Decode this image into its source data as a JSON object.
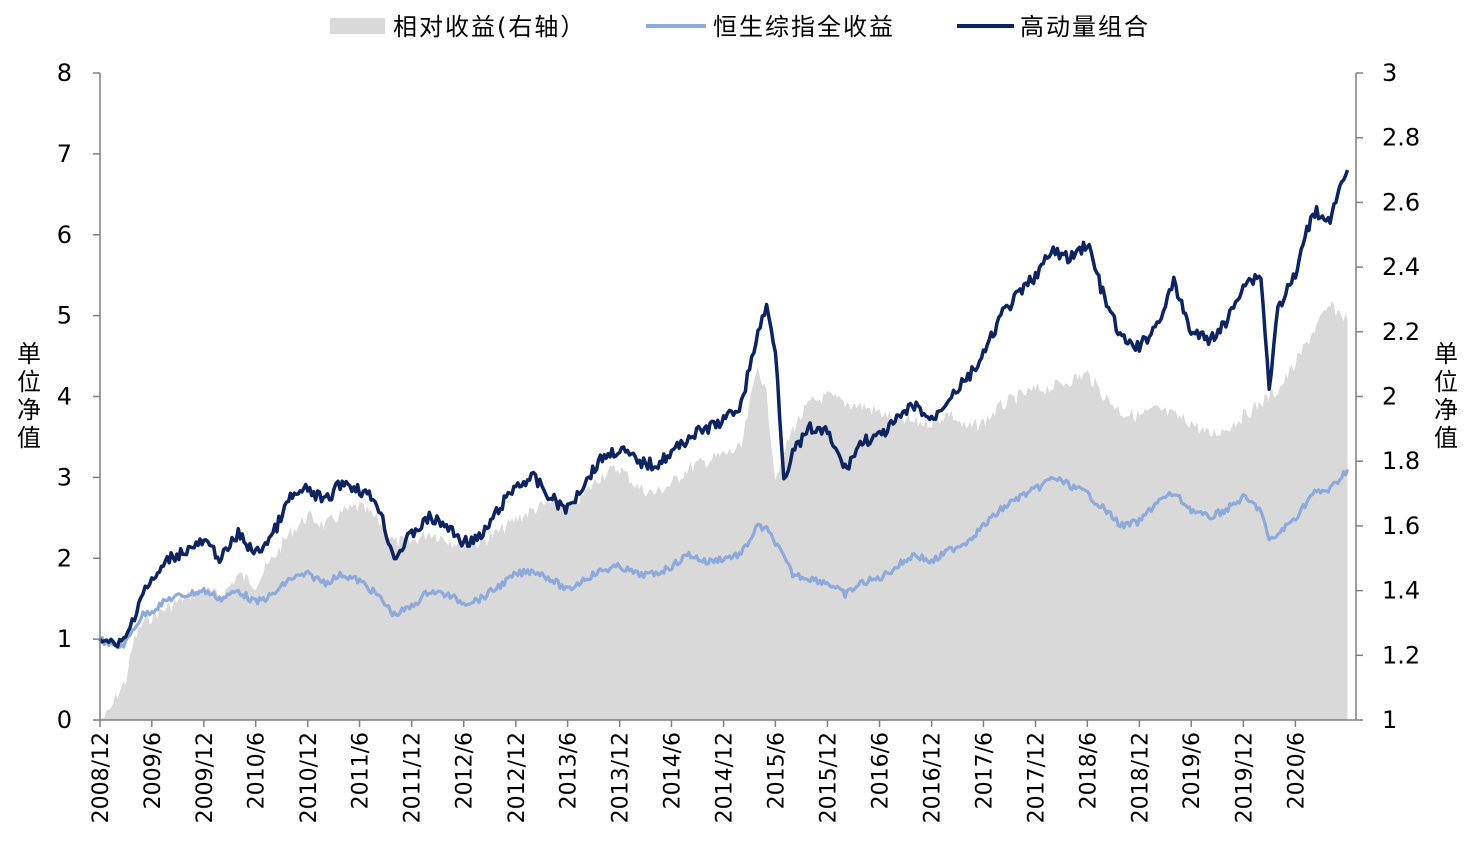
{
  "chart_data": {
    "type": "line",
    "title": "",
    "legend": {
      "placement": "top-center",
      "items": [
        "相对收益(右轴）",
        "恒生综指全收益",
        "高动量组合"
      ]
    },
    "y_left": {
      "label": "单位净值",
      "ylim": [
        0,
        8
      ],
      "ticks": [
        "0",
        "1",
        "2",
        "3",
        "4",
        "5",
        "6",
        "7",
        "8"
      ]
    },
    "y_right": {
      "label": "单位净值",
      "ylim": [
        1,
        3
      ],
      "ticks": [
        "1",
        "1.2",
        "1.4",
        "1.6",
        "1.8",
        "2",
        "2.2",
        "2.4",
        "2.6",
        "2.8",
        "3"
      ]
    },
    "x_ticks": [
      "2008/12",
      "2009/6",
      "2009/12",
      "2010/6",
      "2010/12",
      "2011/6",
      "2011/12",
      "2012/6",
      "2012/12",
      "2013/6",
      "2013/12",
      "2014/6",
      "2014/12",
      "2015/6",
      "2015/12",
      "2016/6",
      "2016/12",
      "2017/6",
      "2017/12",
      "2018/6",
      "2018/12",
      "2019/6",
      "2019/12",
      "2020/6"
    ],
    "x_range": [
      "2008-12-01",
      "2020-12-31"
    ],
    "colors": {
      "relative": "#d9d9d9",
      "index": "#8eaadb",
      "momentum": "#0d2461"
    },
    "series": [
      {
        "name": "相对收益(右轴）",
        "axis": "right",
        "kind": "area",
        "points": [
          [
            "2008-12-01",
            1.0
          ],
          [
            "2009-01-01",
            1.02
          ],
          [
            "2009-02-01",
            1.08
          ],
          [
            "2009-03-01",
            1.12
          ],
          [
            "2009-04-01",
            1.25
          ],
          [
            "2009-05-01",
            1.3
          ],
          [
            "2009-06-01",
            1.32
          ],
          [
            "2009-08-01",
            1.35
          ],
          [
            "2009-10-01",
            1.38
          ],
          [
            "2009-12-01",
            1.4
          ],
          [
            "2010-02-01",
            1.38
          ],
          [
            "2010-04-01",
            1.45
          ],
          [
            "2010-06-01",
            1.42
          ],
          [
            "2010-08-01",
            1.5
          ],
          [
            "2010-10-01",
            1.58
          ],
          [
            "2010-12-01",
            1.63
          ],
          [
            "2011-02-01",
            1.6
          ],
          [
            "2011-04-01",
            1.64
          ],
          [
            "2011-06-01",
            1.66
          ],
          [
            "2011-08-01",
            1.62
          ],
          [
            "2011-10-01",
            1.55
          ],
          [
            "2011-12-01",
            1.55
          ],
          [
            "2012-02-01",
            1.58
          ],
          [
            "2012-04-01",
            1.56
          ],
          [
            "2012-06-01",
            1.54
          ],
          [
            "2012-08-01",
            1.55
          ],
          [
            "2012-10-01",
            1.58
          ],
          [
            "2012-12-01",
            1.62
          ],
          [
            "2013-02-01",
            1.65
          ],
          [
            "2013-04-01",
            1.67
          ],
          [
            "2013-06-01",
            1.65
          ],
          [
            "2013-08-01",
            1.7
          ],
          [
            "2013-10-01",
            1.76
          ],
          [
            "2013-12-01",
            1.78
          ],
          [
            "2014-02-01",
            1.72
          ],
          [
            "2014-04-01",
            1.7
          ],
          [
            "2014-06-01",
            1.73
          ],
          [
            "2014-08-01",
            1.78
          ],
          [
            "2014-10-01",
            1.8
          ],
          [
            "2014-12-01",
            1.82
          ],
          [
            "2015-02-01",
            1.84
          ],
          [
            "2015-04-01",
            2.1
          ],
          [
            "2015-05-01",
            2.0
          ],
          [
            "2015-06-01",
            1.75
          ],
          [
            "2015-08-01",
            1.9
          ],
          [
            "2015-10-01",
            1.98
          ],
          [
            "2015-12-01",
            2.0
          ],
          [
            "2016-02-01",
            1.98
          ],
          [
            "2016-04-01",
            1.97
          ],
          [
            "2016-06-01",
            1.95
          ],
          [
            "2016-08-01",
            1.93
          ],
          [
            "2016-10-01",
            1.92
          ],
          [
            "2016-12-01",
            1.92
          ],
          [
            "2017-02-01",
            1.95
          ],
          [
            "2017-04-01",
            1.9
          ],
          [
            "2017-06-01",
            1.92
          ],
          [
            "2017-08-01",
            1.97
          ],
          [
            "2017-10-01",
            2.0
          ],
          [
            "2017-12-01",
            2.02
          ],
          [
            "2018-02-01",
            2.03
          ],
          [
            "2018-04-01",
            2.05
          ],
          [
            "2018-06-01",
            2.07
          ],
          [
            "2018-08-01",
            2.0
          ],
          [
            "2018-10-01",
            1.95
          ],
          [
            "2018-12-01",
            1.94
          ],
          [
            "2019-02-01",
            1.96
          ],
          [
            "2019-04-01",
            1.94
          ],
          [
            "2019-06-01",
            1.92
          ],
          [
            "2019-08-01",
            1.88
          ],
          [
            "2019-10-01",
            1.9
          ],
          [
            "2019-12-01",
            1.94
          ],
          [
            "2020-02-01",
            1.98
          ],
          [
            "2020-04-01",
            2.02
          ],
          [
            "2020-06-01",
            2.1
          ],
          [
            "2020-08-01",
            2.2
          ],
          [
            "2020-10-01",
            2.28
          ],
          [
            "2020-12-01",
            2.24
          ]
        ]
      },
      {
        "name": "恒生综指全收益",
        "axis": "left",
        "kind": "line",
        "points": [
          [
            "2008-12-01",
            1.0
          ],
          [
            "2009-01-01",
            0.95
          ],
          [
            "2009-02-01",
            0.9
          ],
          [
            "2009-03-01",
            0.95
          ],
          [
            "2009-04-01",
            1.15
          ],
          [
            "2009-05-01",
            1.3
          ],
          [
            "2009-06-01",
            1.35
          ],
          [
            "2009-08-01",
            1.5
          ],
          [
            "2009-10-01",
            1.55
          ],
          [
            "2009-12-01",
            1.6
          ],
          [
            "2010-02-01",
            1.5
          ],
          [
            "2010-04-01",
            1.6
          ],
          [
            "2010-06-01",
            1.45
          ],
          [
            "2010-08-01",
            1.55
          ],
          [
            "2010-10-01",
            1.75
          ],
          [
            "2010-12-01",
            1.8
          ],
          [
            "2011-02-01",
            1.7
          ],
          [
            "2011-04-01",
            1.8
          ],
          [
            "2011-06-01",
            1.72
          ],
          [
            "2011-08-01",
            1.55
          ],
          [
            "2011-10-01",
            1.3
          ],
          [
            "2011-12-01",
            1.4
          ],
          [
            "2012-02-01",
            1.6
          ],
          [
            "2012-04-01",
            1.55
          ],
          [
            "2012-06-01",
            1.45
          ],
          [
            "2012-08-01",
            1.5
          ],
          [
            "2012-10-01",
            1.65
          ],
          [
            "2012-12-01",
            1.8
          ],
          [
            "2013-02-01",
            1.85
          ],
          [
            "2013-04-01",
            1.75
          ],
          [
            "2013-06-01",
            1.6
          ],
          [
            "2013-08-01",
            1.75
          ],
          [
            "2013-10-01",
            1.85
          ],
          [
            "2013-12-01",
            1.9
          ],
          [
            "2014-02-01",
            1.8
          ],
          [
            "2014-04-01",
            1.8
          ],
          [
            "2014-06-01",
            1.9
          ],
          [
            "2014-08-01",
            2.05
          ],
          [
            "2014-10-01",
            1.95
          ],
          [
            "2014-12-01",
            2.0
          ],
          [
            "2015-02-01",
            2.05
          ],
          [
            "2015-04-01",
            2.4
          ],
          [
            "2015-05-01",
            2.35
          ],
          [
            "2015-06-01",
            2.2
          ],
          [
            "2015-08-01",
            1.8
          ],
          [
            "2015-10-01",
            1.75
          ],
          [
            "2015-12-01",
            1.7
          ],
          [
            "2016-02-01",
            1.55
          ],
          [
            "2016-04-01",
            1.7
          ],
          [
            "2016-06-01",
            1.75
          ],
          [
            "2016-08-01",
            1.9
          ],
          [
            "2016-10-01",
            2.05
          ],
          [
            "2016-12-01",
            1.95
          ],
          [
            "2017-02-01",
            2.1
          ],
          [
            "2017-04-01",
            2.2
          ],
          [
            "2017-06-01",
            2.4
          ],
          [
            "2017-08-01",
            2.6
          ],
          [
            "2017-10-01",
            2.75
          ],
          [
            "2017-12-01",
            2.85
          ],
          [
            "2018-02-01",
            3.0
          ],
          [
            "2018-04-01",
            2.9
          ],
          [
            "2018-06-01",
            2.8
          ],
          [
            "2018-08-01",
            2.6
          ],
          [
            "2018-10-01",
            2.4
          ],
          [
            "2018-12-01",
            2.45
          ],
          [
            "2019-02-01",
            2.7
          ],
          [
            "2019-04-01",
            2.8
          ],
          [
            "2019-06-01",
            2.6
          ],
          [
            "2019-08-01",
            2.5
          ],
          [
            "2019-10-01",
            2.6
          ],
          [
            "2019-12-01",
            2.75
          ],
          [
            "2020-02-01",
            2.6
          ],
          [
            "2020-03-01",
            2.2
          ],
          [
            "2020-04-01",
            2.3
          ],
          [
            "2020-06-01",
            2.5
          ],
          [
            "2020-08-01",
            2.8
          ],
          [
            "2020-10-01",
            2.85
          ],
          [
            "2020-12-01",
            3.1
          ]
        ]
      },
      {
        "name": "高动量组合",
        "axis": "left",
        "kind": "line",
        "points": [
          [
            "2008-12-01",
            1.0
          ],
          [
            "2009-01-01",
            0.95
          ],
          [
            "2009-02-01",
            0.92
          ],
          [
            "2009-03-01",
            1.0
          ],
          [
            "2009-04-01",
            1.3
          ],
          [
            "2009-05-01",
            1.6
          ],
          [
            "2009-06-01",
            1.7
          ],
          [
            "2009-08-01",
            2.0
          ],
          [
            "2009-10-01",
            2.1
          ],
          [
            "2009-12-01",
            2.2
          ],
          [
            "2010-02-01",
            2.0
          ],
          [
            "2010-04-01",
            2.3
          ],
          [
            "2010-06-01",
            2.05
          ],
          [
            "2010-08-01",
            2.3
          ],
          [
            "2010-10-01",
            2.75
          ],
          [
            "2010-12-01",
            2.85
          ],
          [
            "2011-02-01",
            2.7
          ],
          [
            "2011-04-01",
            2.95
          ],
          [
            "2011-06-01",
            2.85
          ],
          [
            "2011-08-01",
            2.7
          ],
          [
            "2011-10-01",
            2.0
          ],
          [
            "2011-12-01",
            2.3
          ],
          [
            "2012-02-01",
            2.5
          ],
          [
            "2012-04-01",
            2.4
          ],
          [
            "2012-06-01",
            2.2
          ],
          [
            "2012-08-01",
            2.25
          ],
          [
            "2012-10-01",
            2.6
          ],
          [
            "2012-12-01",
            2.9
          ],
          [
            "2013-02-01",
            3.0
          ],
          [
            "2013-04-01",
            2.75
          ],
          [
            "2013-06-01",
            2.6
          ],
          [
            "2013-08-01",
            2.95
          ],
          [
            "2013-10-01",
            3.25
          ],
          [
            "2013-12-01",
            3.35
          ],
          [
            "2014-02-01",
            3.2
          ],
          [
            "2014-04-01",
            3.15
          ],
          [
            "2014-06-01",
            3.3
          ],
          [
            "2014-08-01",
            3.5
          ],
          [
            "2014-10-01",
            3.6
          ],
          [
            "2014-12-01",
            3.7
          ],
          [
            "2015-02-01",
            3.9
          ],
          [
            "2015-04-01",
            4.8
          ],
          [
            "2015-05-01",
            5.1
          ],
          [
            "2015-06-01",
            4.6
          ],
          [
            "2015-07-01",
            3.0
          ],
          [
            "2015-08-01",
            3.3
          ],
          [
            "2015-10-01",
            3.6
          ],
          [
            "2015-12-01",
            3.55
          ],
          [
            "2016-02-01",
            3.1
          ],
          [
            "2016-04-01",
            3.45
          ],
          [
            "2016-06-01",
            3.5
          ],
          [
            "2016-08-01",
            3.7
          ],
          [
            "2016-10-01",
            3.9
          ],
          [
            "2016-12-01",
            3.7
          ],
          [
            "2017-02-01",
            4.0
          ],
          [
            "2017-04-01",
            4.2
          ],
          [
            "2017-06-01",
            4.5
          ],
          [
            "2017-08-01",
            5.0
          ],
          [
            "2017-10-01",
            5.25
          ],
          [
            "2017-12-01",
            5.5
          ],
          [
            "2018-02-01",
            5.8
          ],
          [
            "2018-04-01",
            5.7
          ],
          [
            "2018-06-01",
            5.9
          ],
          [
            "2018-08-01",
            5.2
          ],
          [
            "2018-10-01",
            4.7
          ],
          [
            "2018-12-01",
            4.6
          ],
          [
            "2019-02-01",
            4.9
          ],
          [
            "2019-04-01",
            5.4
          ],
          [
            "2019-06-01",
            4.8
          ],
          [
            "2019-08-01",
            4.7
          ],
          [
            "2019-10-01",
            4.9
          ],
          [
            "2019-12-01",
            5.4
          ],
          [
            "2020-02-01",
            5.5
          ],
          [
            "2020-03-01",
            4.1
          ],
          [
            "2020-04-01",
            5.1
          ],
          [
            "2020-06-01",
            5.5
          ],
          [
            "2020-08-01",
            6.3
          ],
          [
            "2020-10-01",
            6.2
          ],
          [
            "2020-12-01",
            6.8
          ]
        ]
      }
    ]
  }
}
